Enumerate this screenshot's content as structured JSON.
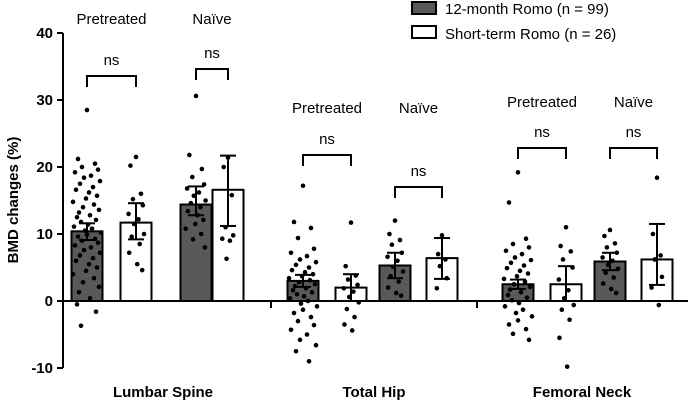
{
  "chart_data": {
    "type": "bar",
    "ylabel": "BMD changes (%)",
    "ylim": [
      -10,
      40
    ],
    "yticks": [
      -10,
      0,
      10,
      20,
      30,
      40
    ],
    "categories": [
      "Lumbar Spine",
      "Total Hip",
      "Femoral Neck"
    ],
    "subgroups": [
      "Pretreated",
      "Naïve"
    ],
    "series": [
      {
        "name": "12-month Romo (n = 99)",
        "color": "#595959"
      },
      {
        "name": "Short-term Romo (n = 26)",
        "color": "#ffffff"
      }
    ],
    "bars": [
      {
        "category": 0,
        "subgroup": 0,
        "series": 0,
        "mean": 10.4,
        "sd_low": 1.3,
        "sd_high": 1.2,
        "points": [
          28.5,
          21.2,
          20.5,
          20.0,
          19.6,
          19.2,
          18.7,
          18.4,
          17.9,
          17.5,
          17.0,
          16.6,
          16.2,
          15.7,
          15.3,
          14.8,
          14.4,
          14.0,
          13.6,
          13.2,
          12.8,
          12.5,
          12.1,
          11.8,
          11.4,
          11.1,
          10.8,
          10.5,
          10.2,
          9.9,
          9.6,
          9.3,
          9.0,
          8.7,
          8.3,
          8.0,
          7.6,
          7.2,
          6.8,
          6.4,
          6.0,
          5.5,
          5.0,
          4.5,
          4.0,
          3.4,
          2.8,
          2.1,
          1.3,
          0.4,
          -0.5,
          -1.6,
          -3.7
        ]
      },
      {
        "category": 0,
        "subgroup": 0,
        "series": 1,
        "mean": 11.7,
        "sd_low": 2.5,
        "sd_high": 2.9,
        "points": [
          21.5,
          20.2,
          16.0,
          15.2,
          14.3,
          13.0,
          12.2,
          11.5,
          10.0,
          9.6,
          8.5,
          7.2,
          5.5,
          4.6
        ]
      },
      {
        "category": 0,
        "subgroup": 1,
        "series": 0,
        "mean": 14.4,
        "sd_low": 1.6,
        "sd_high": 2.7,
        "points": [
          30.6,
          21.8,
          19.7,
          18.5,
          17.4,
          16.8,
          16.2,
          15.7,
          15.0,
          14.6,
          14.0,
          13.4,
          12.8,
          12.1,
          11.5,
          10.8,
          10.0,
          9.2,
          8.0
        ]
      },
      {
        "category": 0,
        "subgroup": 1,
        "series": 1,
        "mean": 16.6,
        "sd_low": 5.4,
        "sd_high": 5.1,
        "points": [
          21.4,
          20.0,
          15.8,
          11.0,
          9.8,
          9.3,
          9.0,
          6.3
        ]
      },
      {
        "category": 1,
        "subgroup": 0,
        "series": 0,
        "mean": 3.0,
        "sd_low": 0.9,
        "sd_high": 0.9,
        "points": [
          17.2,
          11.8,
          10.9,
          9.4,
          7.8,
          7.2,
          6.7,
          6.2,
          5.8,
          5.4,
          5.0,
          4.6,
          4.3,
          4.0,
          3.7,
          3.4,
          3.1,
          2.8,
          2.5,
          2.2,
          1.9,
          1.6,
          1.3,
          1.0,
          0.7,
          0.4,
          0.0,
          -0.4,
          -0.8,
          -1.3,
          -1.8,
          -2.4,
          -3.0,
          -3.6,
          -4.3,
          -5.0,
          -5.8,
          -6.6,
          -7.5,
          -9.0
        ]
      },
      {
        "category": 1,
        "subgroup": 0,
        "series": 1,
        "mean": 2.0,
        "sd_low": 2.0,
        "sd_high": 2.0,
        "points": [
          11.7,
          5.2,
          3.8,
          3.2,
          2.4,
          1.9,
          1.4,
          0.6,
          -0.2,
          -1.2,
          -2.4,
          -3.5,
          -4.4
        ]
      },
      {
        "category": 1,
        "subgroup": 1,
        "series": 0,
        "mean": 5.3,
        "sd_low": 1.9,
        "sd_high": 1.9,
        "points": [
          12.0,
          10.0,
          9.1,
          8.4,
          7.2,
          6.6,
          6.0,
          5.1,
          4.4,
          3.7,
          2.9,
          2.0,
          1.2,
          0.8
        ]
      },
      {
        "category": 1,
        "subgroup": 1,
        "series": 1,
        "mean": 6.4,
        "sd_low": 3.1,
        "sd_high": 3.0,
        "points": [
          9.8,
          7.0,
          6.2,
          5.2,
          3.4,
          1.9
        ]
      },
      {
        "category": 2,
        "subgroup": 0,
        "series": 0,
        "mean": 2.5,
        "sd_low": 0.7,
        "sd_high": 0.7,
        "points": [
          19.2,
          14.7,
          9.3,
          8.5,
          8.0,
          7.5,
          7.0,
          6.5,
          6.1,
          5.7,
          5.3,
          4.9,
          4.5,
          4.1,
          3.7,
          3.3,
          2.9,
          2.5,
          2.1,
          1.7,
          1.3,
          0.9,
          0.5,
          0.1,
          -0.3,
          -0.8,
          -1.3,
          -1.8,
          -2.3,
          -2.9,
          -3.5,
          -4.2,
          -4.9,
          -5.8
        ]
      },
      {
        "category": 2,
        "subgroup": 0,
        "series": 1,
        "mean": 2.5,
        "sd_low": 2.5,
        "sd_high": 2.7,
        "points": [
          11.0,
          8.2,
          7.4,
          6.2,
          5.0,
          3.2,
          1.6,
          0.4,
          -0.6,
          -1.3,
          -2.8,
          -5.5,
          -9.8
        ]
      },
      {
        "category": 2,
        "subgroup": 1,
        "series": 0,
        "mean": 5.9,
        "sd_low": 1.3,
        "sd_high": 1.3,
        "points": [
          10.6,
          9.7,
          8.6,
          8.0,
          7.2,
          6.5,
          6.0,
          5.4,
          4.8,
          4.2,
          3.5,
          2.6,
          1.8,
          1.2
        ]
      },
      {
        "category": 2,
        "subgroup": 1,
        "series": 1,
        "mean": 6.2,
        "sd_low": 3.8,
        "sd_high": 5.3,
        "points": [
          18.4,
          10.0,
          6.8,
          6.2,
          3.6,
          2.0,
          -0.6
        ]
      }
    ],
    "comparisons": [
      {
        "category": 0,
        "subgroup": 0,
        "label": "ns"
      },
      {
        "category": 0,
        "subgroup": 1,
        "label": "ns"
      },
      {
        "category": 1,
        "subgroup": 0,
        "label": "ns"
      },
      {
        "category": 1,
        "subgroup": 1,
        "label": "ns"
      },
      {
        "category": 2,
        "subgroup": 0,
        "label": "ns"
      },
      {
        "category": 2,
        "subgroup": 1,
        "label": "ns"
      }
    ],
    "legend_position": "top-right"
  }
}
